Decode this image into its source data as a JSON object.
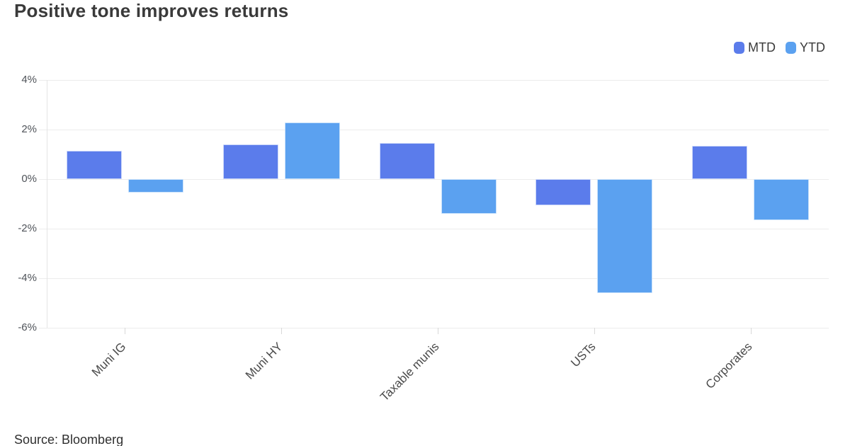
{
  "title": "Positive tone improves returns",
  "source_note": "Source: Bloomberg",
  "legend": {
    "items": [
      {
        "label": "MTD",
        "color": "#5b7ceb"
      },
      {
        "label": "YTD",
        "color": "#5ba1f0"
      }
    ]
  },
  "chart_data": {
    "type": "bar",
    "title": "Positive tone improves returns",
    "categories": [
      "Muni IG",
      "Muni HY",
      "Taxable munis",
      "USTs",
      "Corporates"
    ],
    "series": [
      {
        "name": "MTD",
        "color": "#5b7ceb",
        "border_color": "#c9d5f9",
        "values": [
          1.15,
          1.4,
          1.45,
          -1.05,
          1.35
        ]
      },
      {
        "name": "YTD",
        "color": "#5ba1f0",
        "border_color": "#c8e1fb",
        "values": [
          -0.55,
          2.3,
          -1.4,
          -4.6,
          -1.65
        ]
      }
    ],
    "unit": "%",
    "xlabel": "",
    "ylabel": "",
    "yticks": [
      4,
      2,
      0,
      -2,
      -4,
      -6
    ],
    "ytick_labels": [
      "4%",
      "2%",
      "0%",
      "-2%",
      "-4%",
      "-6%"
    ],
    "ylim": [
      -6,
      4
    ],
    "grid": true,
    "legend_position": "top-right",
    "annotation": "Source: Bloomberg"
  }
}
